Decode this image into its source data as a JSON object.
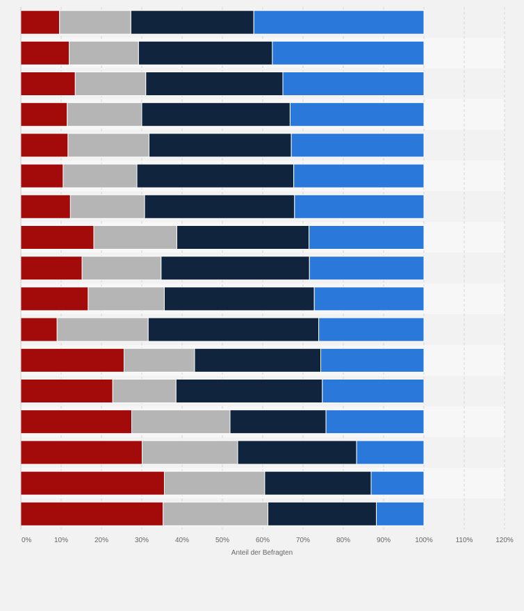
{
  "chart_data": {
    "type": "bar",
    "orientation": "horizontal",
    "stacked": true,
    "xlabel": "Anteil der Befragten",
    "xlim": [
      0,
      120
    ],
    "x_ticks": [
      0,
      10,
      20,
      30,
      40,
      50,
      60,
      70,
      80,
      90,
      100,
      110,
      120
    ],
    "x_tick_labels": [
      "0%",
      "10%",
      "20%",
      "30%",
      "40%",
      "50%",
      "60%",
      "70%",
      "80%",
      "90%",
      "100%",
      "110%",
      "120%"
    ],
    "grid": true,
    "series": [
      {
        "color": "#a30b0b",
        "values": [
          9.6,
          12.0,
          13.5,
          11.5,
          11.7,
          10.5,
          12.3,
          18.1,
          15.2,
          16.7,
          9.0,
          25.6,
          22.8,
          27.5,
          30.1,
          35.6,
          35.3
        ]
      },
      {
        "color": "#b5b5b5",
        "values": [
          17.7,
          17.2,
          17.5,
          18.5,
          20.1,
          18.3,
          18.4,
          20.6,
          19.6,
          18.9,
          22.6,
          17.5,
          15.7,
          24.4,
          23.7,
          24.9,
          26.0
        ]
      },
      {
        "color": "#10253d",
        "values": [
          30.5,
          33.2,
          34.0,
          36.8,
          35.3,
          38.9,
          37.2,
          32.8,
          36.8,
          37.2,
          42.3,
          31.3,
          36.3,
          23.8,
          29.5,
          26.4,
          26.9
        ]
      },
      {
        "color": "#2a78d9",
        "values": [
          42.2,
          37.6,
          35.0,
          33.2,
          32.9,
          32.3,
          32.1,
          28.5,
          28.4,
          27.2,
          26.1,
          25.6,
          25.2,
          24.3,
          16.7,
          13.1,
          11.8
        ]
      }
    ]
  }
}
